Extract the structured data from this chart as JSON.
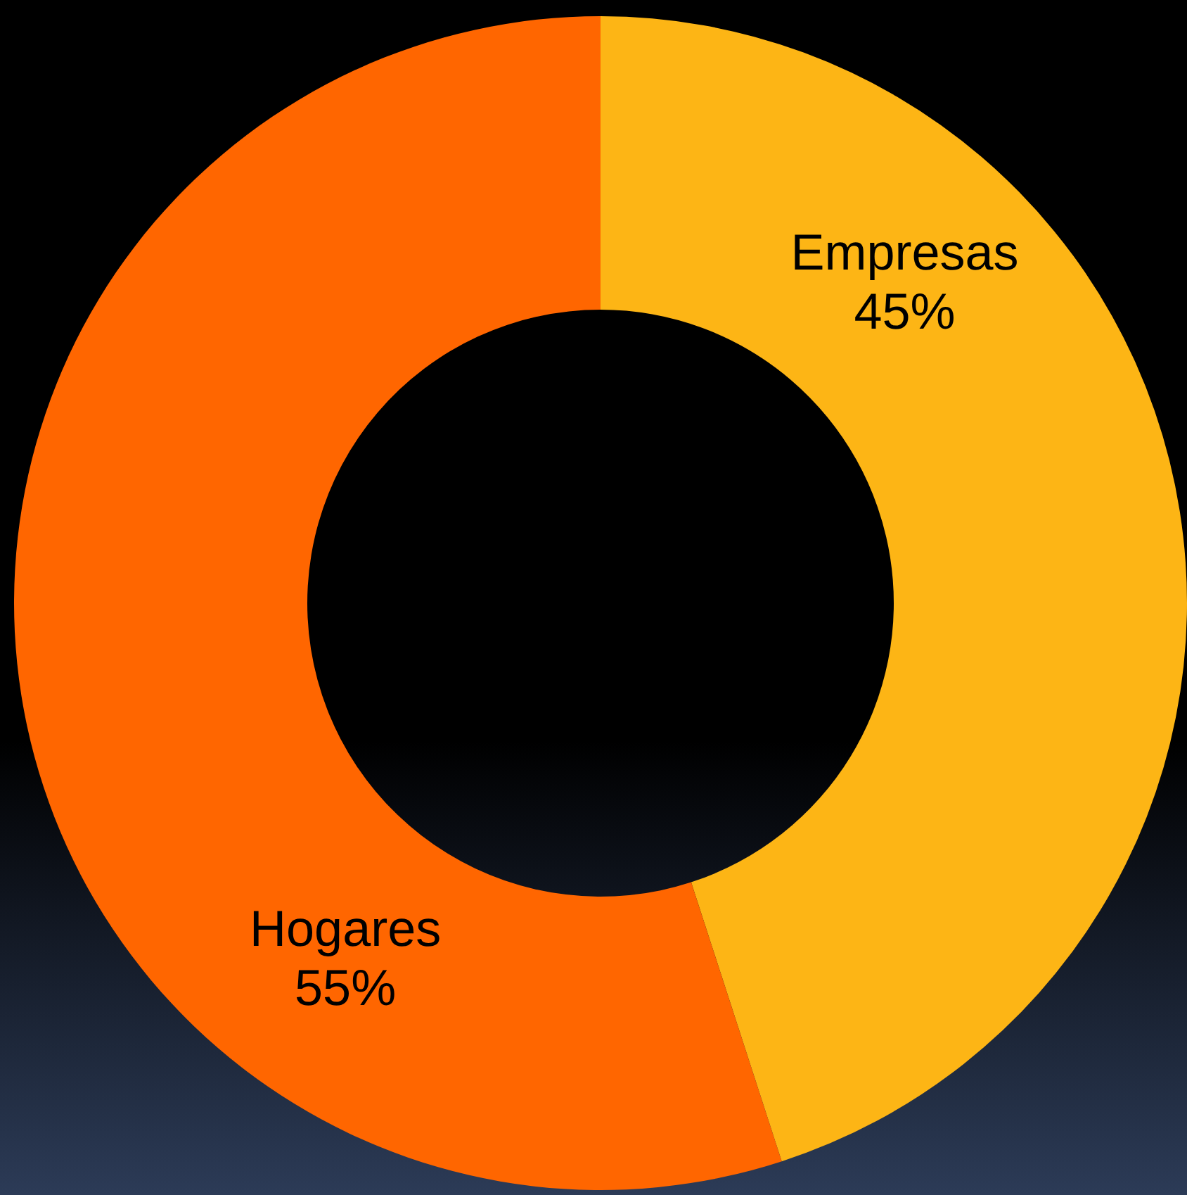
{
  "chart_data": {
    "type": "donut",
    "categories": [
      "Empresas",
      "Hogares"
    ],
    "values": [
      45,
      55
    ],
    "colors": [
      "#fdb515",
      "#ff6600"
    ],
    "value_labels": [
      "45%",
      "55%"
    ],
    "legend": false
  }
}
